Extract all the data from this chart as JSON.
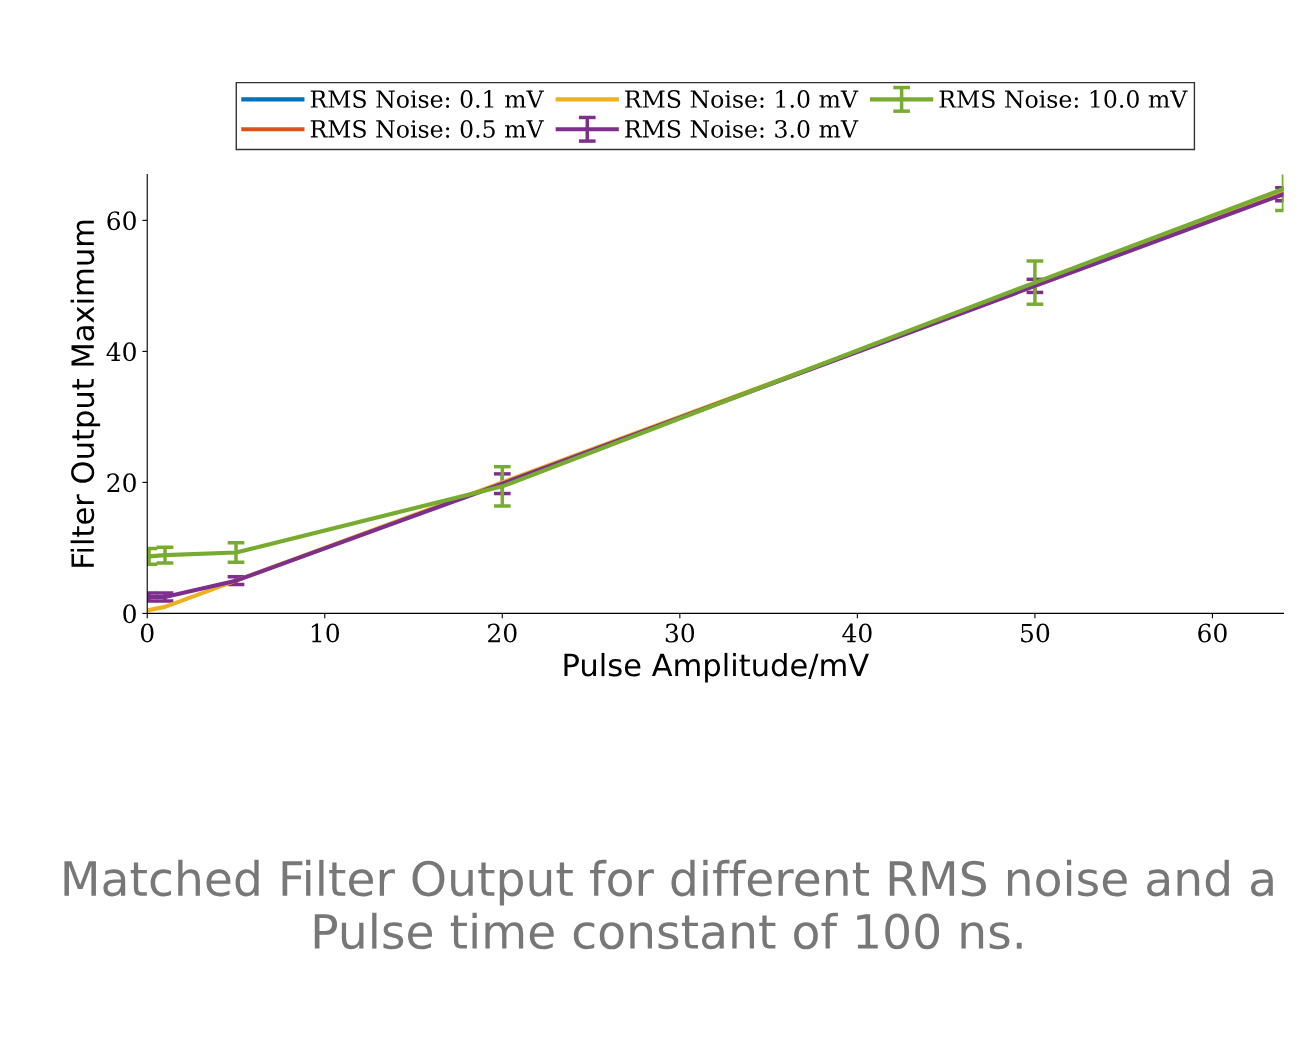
{
  "chart_data": {
    "type": "line",
    "xlabel": "Pulse Amplitude/mV",
    "ylabel": "Filter Output Maximum",
    "x": [
      0.1,
      1,
      5,
      20,
      50,
      64
    ],
    "series": [
      {
        "name": "RMS Noise: 0.1 mV",
        "color": "#0072bd",
        "values": [
          null,
          null,
          null,
          null,
          null,
          null
        ]
      },
      {
        "name": "RMS Noise: 0.5 mV",
        "color": "#d95319",
        "values": [
          null,
          null,
          null,
          null,
          null,
          null
        ]
      },
      {
        "name": "RMS Noise: 1.0 mV",
        "color": "#edb120",
        "values": [
          0.5,
          1,
          5,
          20,
          50,
          64.2
        ]
      },
      {
        "name": "RMS Noise: 3.0 mV",
        "color": "#7e2f8e",
        "values": [
          2.5,
          2.5,
          5,
          19.8,
          50,
          64
        ],
        "errors": [
          0.6,
          0.6,
          0.6,
          1.5,
          1,
          1
        ]
      },
      {
        "name": "RMS Noise: 10.0 mV",
        "color": "#77ac30",
        "values": [
          8.7,
          8.9,
          9.3,
          19.4,
          50.5,
          64.8
        ],
        "errors": [
          1.2,
          1.2,
          1.5,
          3,
          3.3,
          3.3
        ]
      }
    ],
    "xlim": [
      0,
      64
    ],
    "ylim": [
      0,
      67
    ],
    "xticks": [
      0,
      10,
      20,
      30,
      40,
      50,
      60
    ],
    "yticks": [
      0,
      20,
      40,
      60
    ],
    "grid": false,
    "legend": "top",
    "marker": "none",
    "line_style": "solid",
    "annotations": [
      "Matched Filter Output for different RMS noise and a Pulse time constant of 100 ns."
    ]
  }
}
